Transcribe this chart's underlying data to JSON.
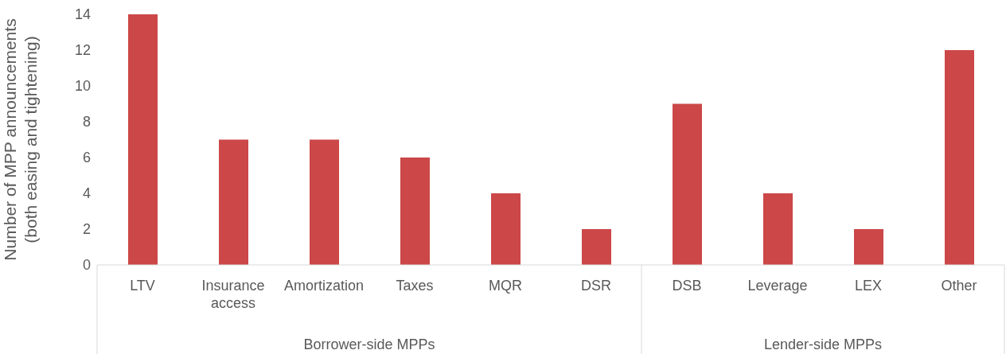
{
  "chart_data": {
    "type": "bar",
    "ylabel": "Number of MPP announcements (both easing and tightening)",
    "categories": [
      "LTV",
      "Insurance access",
      "Amortization",
      "Taxes",
      "MQR",
      "DSR",
      "DSB",
      "Leverage",
      "LEX",
      "Other"
    ],
    "values": [
      14,
      7,
      7,
      6,
      4,
      2,
      9,
      4,
      2,
      12
    ],
    "color": "#cc4748",
    "ylim": [
      0,
      14
    ],
    "yticks": [
      0,
      2,
      4,
      6,
      8,
      10,
      12,
      14
    ],
    "annotations": [
      "Borrower-side MPPs",
      "Lender-side MPPs"
    ]
  }
}
